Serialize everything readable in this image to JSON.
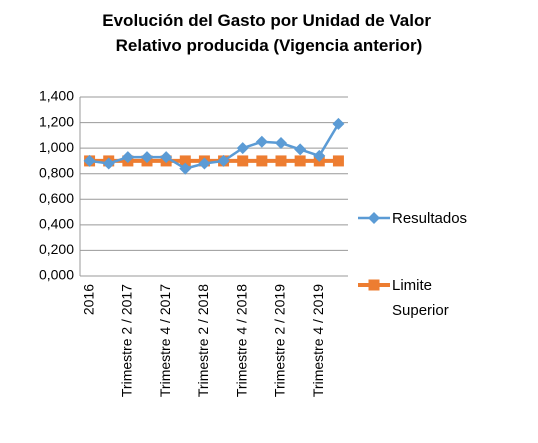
{
  "chart_data": {
    "type": "line",
    "title": "Evolución del Gasto por Unidad de Valor Relativo producida (Vigencia anterior)",
    "categories": [
      "2016",
      null,
      "Trimestre 2 / 2017",
      null,
      "Trimestre 4 / 2017",
      null,
      "Trimestre 2 / 2018",
      null,
      "Trimestre 4 / 2018",
      null,
      "Trimestre 2 / 2019",
      null,
      "Trimestre 4 / 2019",
      null
    ],
    "series": [
      {
        "name": "Resultados",
        "color": "#5b9bd5",
        "values": [
          0.9,
          0.88,
          0.93,
          0.93,
          0.93,
          0.84,
          0.88,
          0.9,
          1.0,
          1.05,
          1.04,
          0.99,
          0.94,
          1.19
        ]
      },
      {
        "name": "Limite Superior",
        "color": "#ed7d31",
        "values": [
          0.9,
          0.9,
          0.9,
          0.9,
          0.9,
          0.9,
          0.9,
          0.9,
          0.9,
          0.9,
          0.9,
          0.9,
          0.9,
          0.9
        ]
      }
    ],
    "ylim": [
      0,
      1.4
    ],
    "yticks": [
      {
        "value": 0,
        "label": "0,000"
      },
      {
        "value": 0.2,
        "label": "0,200"
      },
      {
        "value": 0.4,
        "label": "0,400"
      },
      {
        "value": 0.6,
        "label": "0,600"
      },
      {
        "value": 0.8,
        "label": "0,800"
      },
      {
        "value": 1.0,
        "label": "1,000"
      },
      {
        "value": 1.2,
        "label": "1,200"
      },
      {
        "value": 1.4,
        "label": "1,400"
      }
    ],
    "grid": true,
    "legend": "right"
  }
}
